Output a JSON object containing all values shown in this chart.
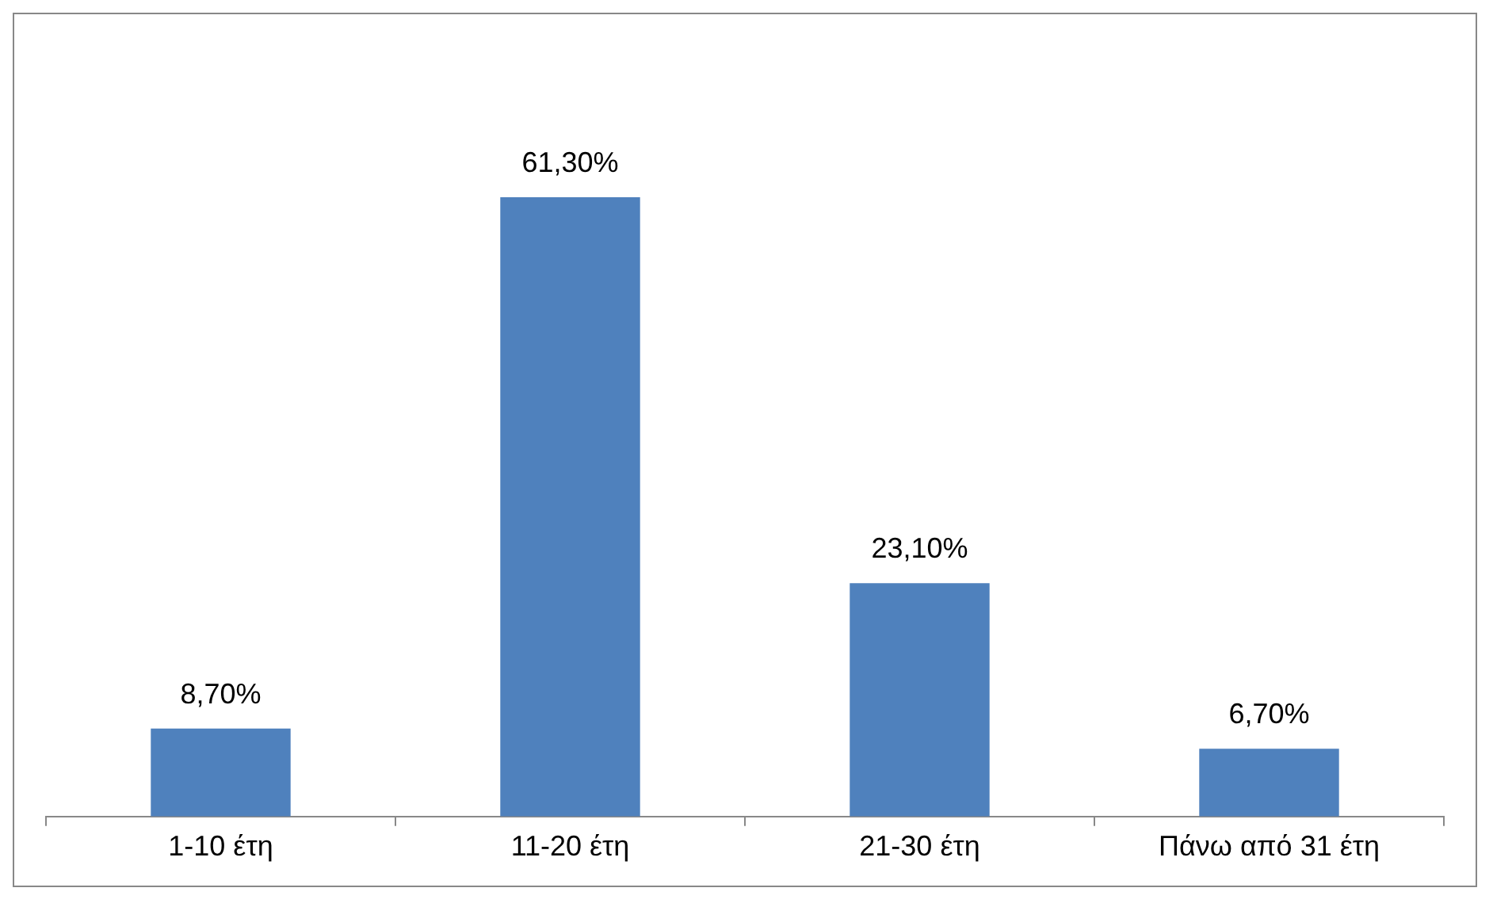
{
  "chart_data": {
    "type": "bar",
    "categories": [
      "1-10 έτη",
      "11-20 έτη",
      "21-30 έτη",
      "Πάνω από 31 έτη"
    ],
    "values": [
      8.7,
      61.3,
      23.1,
      6.7
    ],
    "value_labels": [
      "8,70%",
      "61,30%",
      "23,10%",
      "6,70%"
    ],
    "color": "#4f81bd",
    "legend": false
  }
}
